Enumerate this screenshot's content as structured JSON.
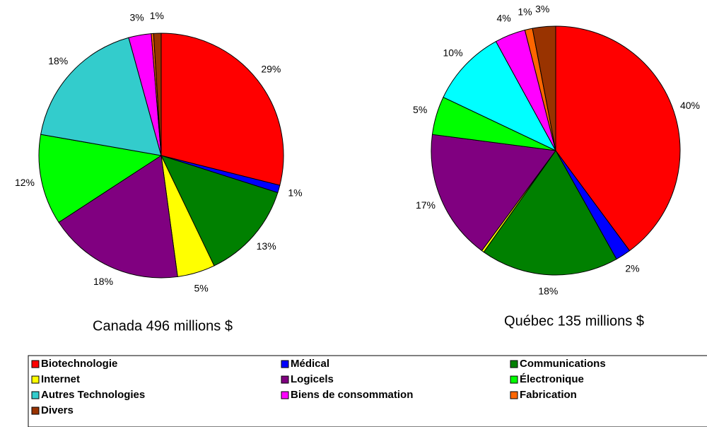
{
  "chart_data": [
    {
      "type": "pie",
      "title": "Canada 496 millions $",
      "categories": [
        "Biotechnologie",
        "Médical",
        "Communications",
        "Internet",
        "Logicels",
        "Électronique",
        "Autres Technologies",
        "Biens de consommation",
        "Fabrication",
        "Divers"
      ],
      "values": [
        29,
        1,
        13,
        5,
        18,
        12,
        18,
        3,
        0.3,
        1
      ],
      "value_labels": [
        "29%",
        "1%",
        "13%",
        "5%",
        "18%",
        "12%",
        "18%",
        "3%",
        null,
        "1%"
      ],
      "colors": [
        "#ff0000",
        "#0000ff",
        "#008000",
        "#ffff00",
        "#800080",
        "#00ff00",
        "#33cccc",
        "#ff00ff",
        "#ff6600",
        "#993300"
      ]
    },
    {
      "type": "pie",
      "title": "Québec 135 millions $",
      "categories": [
        "Biotechnologie",
        "Médical",
        "Communications",
        "Internet",
        "Logicels",
        "Électronique",
        "Autres Technologies",
        "Biens de consommation",
        "Fabrication",
        "Divers"
      ],
      "values": [
        40,
        2,
        18,
        0.3,
        17,
        5,
        10,
        4,
        1,
        3
      ],
      "value_labels": [
        "40%",
        "2%",
        "18%",
        null,
        "17%",
        "5%",
        "10%",
        "4%",
        "1%",
        "3%"
      ],
      "colors": [
        "#ff0000",
        "#0000ff",
        "#008000",
        "#ffff00",
        "#800080",
        "#00ff00",
        "#00ffff",
        "#ff00ff",
        "#ff6600",
        "#993300"
      ]
    }
  ]
}
